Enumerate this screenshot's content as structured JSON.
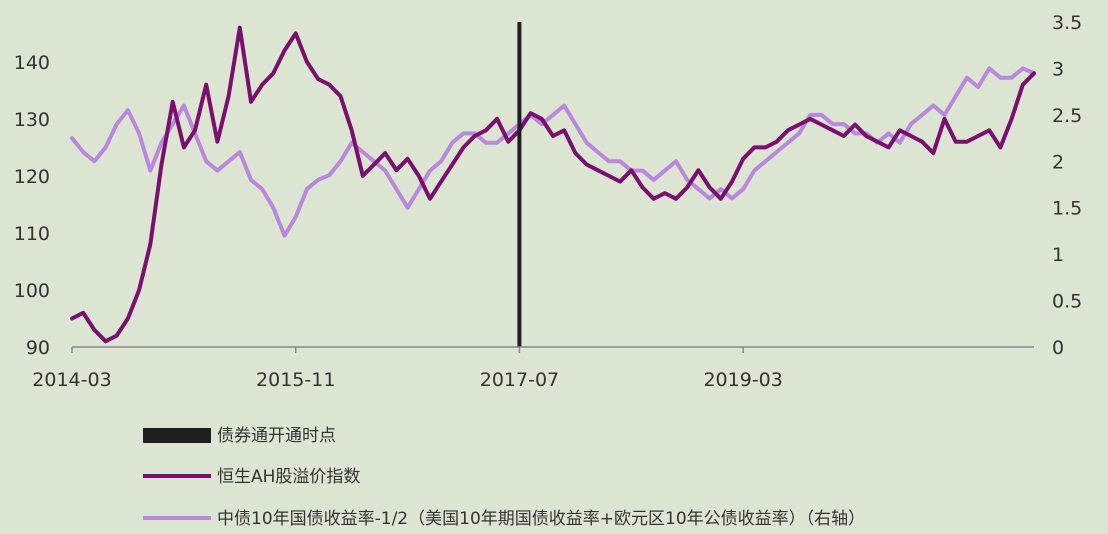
{
  "chart_data": {
    "type": "line",
    "title": "",
    "colors": {
      "background": "#dce5d2",
      "marker": "#1f1f1f",
      "ah_index": "#7a0f6e",
      "yield_spread": "#b987dd",
      "axis": "#888888"
    },
    "x_ticks": [
      "2014-03",
      "2015-11",
      "2017-07",
      "2019-03"
    ],
    "x_range": [
      "2014-03",
      "2021-05"
    ],
    "y_left": {
      "ticks": [
        "90",
        "100",
        "110",
        "120",
        "130",
        "140"
      ],
      "range": [
        90,
        147
      ]
    },
    "y_right": {
      "ticks": [
        "0",
        "0.5",
        "1",
        "1.5",
        "2",
        "2.5",
        "3",
        "3.5"
      ],
      "range": [
        0,
        3.5
      ]
    },
    "bond_connect_date": "2017-07",
    "series": [
      {
        "name": "恒生AH股溢价指数",
        "axis": "left",
        "x": [
          "2014-03",
          "2014-04",
          "2014-05",
          "2014-06",
          "2014-07",
          "2014-08",
          "2014-09",
          "2014-10",
          "2014-11",
          "2014-12",
          "2015-01",
          "2015-02",
          "2015-03",
          "2015-04",
          "2015-05",
          "2015-06",
          "2015-07",
          "2015-08",
          "2015-09",
          "2015-10",
          "2015-11",
          "2015-12",
          "2016-01",
          "2016-02",
          "2016-03",
          "2016-04",
          "2016-05",
          "2016-06",
          "2016-07",
          "2016-08",
          "2016-09",
          "2016-10",
          "2016-11",
          "2016-12",
          "2017-01",
          "2017-02",
          "2017-03",
          "2017-04",
          "2017-05",
          "2017-06",
          "2017-07",
          "2017-08",
          "2017-09",
          "2017-10",
          "2017-11",
          "2017-12",
          "2018-01",
          "2018-02",
          "2018-03",
          "2018-04",
          "2018-05",
          "2018-06",
          "2018-07",
          "2018-08",
          "2018-09",
          "2018-10",
          "2018-11",
          "2018-12",
          "2019-01",
          "2019-02",
          "2019-03",
          "2019-04",
          "2019-05",
          "2019-06",
          "2019-07",
          "2019-08",
          "2019-09",
          "2019-10",
          "2019-11",
          "2019-12",
          "2020-01",
          "2020-02",
          "2020-03",
          "2020-04",
          "2020-05",
          "2020-06",
          "2020-07",
          "2020-08",
          "2020-09",
          "2020-10",
          "2020-11",
          "2020-12",
          "2021-01",
          "2021-02",
          "2021-03",
          "2021-04",
          "2021-05"
        ],
        "values": [
          95,
          96,
          93,
          91,
          92,
          95,
          100,
          108,
          122,
          133,
          125,
          128,
          136,
          126,
          134,
          146,
          133,
          136,
          138,
          142,
          145,
          140,
          137,
          136,
          134,
          128,
          120,
          122,
          124,
          121,
          123,
          120,
          116,
          119,
          122,
          125,
          127,
          128,
          130,
          126,
          128,
          131,
          130,
          127,
          128,
          124,
          122,
          121,
          120,
          119,
          121,
          118,
          116,
          117,
          116,
          118,
          121,
          118,
          116,
          119,
          123,
          125,
          125,
          126,
          128,
          129,
          130,
          129,
          128,
          127,
          129,
          127,
          126,
          125,
          128,
          127,
          126,
          124,
          130,
          126,
          126,
          127,
          128,
          125,
          130,
          136,
          138
        ]
      },
      {
        "name": "中债10年国债收益率-1/2（美国10年期国债收益率+欧元区10年公债收益率）（右轴）",
        "axis": "right",
        "x": [
          "2014-03",
          "2014-04",
          "2014-05",
          "2014-06",
          "2014-07",
          "2014-08",
          "2014-09",
          "2014-10",
          "2014-11",
          "2014-12",
          "2015-01",
          "2015-02",
          "2015-03",
          "2015-04",
          "2015-05",
          "2015-06",
          "2015-07",
          "2015-08",
          "2015-09",
          "2015-10",
          "2015-11",
          "2015-12",
          "2016-01",
          "2016-02",
          "2016-03",
          "2016-04",
          "2016-05",
          "2016-06",
          "2016-07",
          "2016-08",
          "2016-09",
          "2016-10",
          "2016-11",
          "2016-12",
          "2017-01",
          "2017-02",
          "2017-03",
          "2017-04",
          "2017-05",
          "2017-06",
          "2017-07",
          "2017-08",
          "2017-09",
          "2017-10",
          "2017-11",
          "2017-12",
          "2018-01",
          "2018-02",
          "2018-03",
          "2018-04",
          "2018-05",
          "2018-06",
          "2018-07",
          "2018-08",
          "2018-09",
          "2018-10",
          "2018-11",
          "2018-12",
          "2019-01",
          "2019-02",
          "2019-03",
          "2019-04",
          "2019-05",
          "2019-06",
          "2019-07",
          "2019-08",
          "2019-09",
          "2019-10",
          "2019-11",
          "2019-12",
          "2020-01",
          "2020-02",
          "2020-03",
          "2020-04",
          "2020-05",
          "2020-06",
          "2020-07",
          "2020-08",
          "2020-09",
          "2020-10",
          "2020-11",
          "2020-12",
          "2021-01",
          "2021-02",
          "2021-03",
          "2021-04",
          "2021-05"
        ],
        "values": [
          2.25,
          2.1,
          2.0,
          2.15,
          2.4,
          2.55,
          2.3,
          1.9,
          2.2,
          2.4,
          2.6,
          2.3,
          2.0,
          1.9,
          2.0,
          2.1,
          1.8,
          1.7,
          1.5,
          1.2,
          1.4,
          1.7,
          1.8,
          1.85,
          2.0,
          2.2,
          2.1,
          2.0,
          1.9,
          1.7,
          1.5,
          1.7,
          1.9,
          2.0,
          2.2,
          2.3,
          2.3,
          2.2,
          2.2,
          2.3,
          2.4,
          2.5,
          2.4,
          2.5,
          2.6,
          2.4,
          2.2,
          2.1,
          2.0,
          2.0,
          1.9,
          1.9,
          1.8,
          1.9,
          2.0,
          1.8,
          1.7,
          1.6,
          1.7,
          1.6,
          1.7,
          1.9,
          2.0,
          2.1,
          2.2,
          2.3,
          2.5,
          2.5,
          2.4,
          2.4,
          2.3,
          2.3,
          2.2,
          2.3,
          2.2,
          2.4,
          2.5,
          2.6,
          2.5,
          2.7,
          2.9,
          2.8,
          3.0,
          2.9,
          2.9,
          3.0,
          2.95
        ]
      }
    ],
    "legend": {
      "placement": "bottom",
      "items": [
        {
          "label": "债券通开通时点",
          "kind": "bar",
          "color": "#1f1f1f"
        },
        {
          "label": "恒生AH股溢价指数",
          "kind": "line",
          "color": "#7a0f6e"
        },
        {
          "label": "中债10年国债收益率-1/2（美国10年期国债收益率+欧元区10年公债收益率）（右轴）",
          "kind": "line",
          "color": "#b987dd"
        }
      ]
    }
  }
}
